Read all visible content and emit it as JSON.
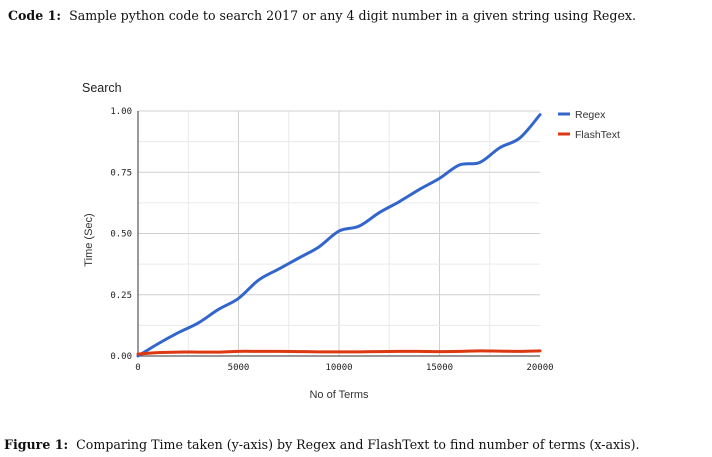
{
  "code_caption": {
    "label": "Code 1:",
    "text": "Sample python code to search 2017 or any 4 digit number in a given string using Regex."
  },
  "figure_caption": {
    "label": "Figure 1:",
    "text": "Comparing Time taken (y-axis) by Regex and FlashText to find number of terms (x-axis)."
  },
  "chart_data": {
    "type": "line",
    "title": "Search",
    "xlabel": "No of Terms",
    "ylabel": "Time (Sec)",
    "xlim": [
      0,
      20000
    ],
    "ylim": [
      0,
      1.0
    ],
    "x_ticks": [
      0,
      5000,
      10000,
      15000,
      20000
    ],
    "x_tick_labels": [
      "0",
      "5000",
      "10000",
      "15000",
      "20000"
    ],
    "y_ticks": [
      0,
      0.25,
      0.5,
      0.75,
      1.0
    ],
    "y_tick_labels": [
      "0.00",
      "0.25",
      "0.50",
      "0.75",
      "1.00"
    ],
    "grid": true,
    "legend_position": "right",
    "x": [
      0,
      1000,
      2000,
      3000,
      4000,
      5000,
      6000,
      7000,
      8000,
      9000,
      10000,
      11000,
      12000,
      13000,
      14000,
      15000,
      16000,
      17000,
      18000,
      19000,
      20000
    ],
    "series": [
      {
        "name": "Regex",
        "color": "#3366cc",
        "values": [
          0.0,
          0.05,
          0.095,
          0.135,
          0.19,
          0.235,
          0.31,
          0.355,
          0.4,
          0.445,
          0.51,
          0.53,
          0.585,
          0.63,
          0.68,
          0.725,
          0.78,
          0.79,
          0.85,
          0.89,
          0.985
        ]
      },
      {
        "name": "FlashText",
        "color": "#dc3912",
        "values": [
          0.008,
          0.014,
          0.016,
          0.016,
          0.016,
          0.019,
          0.019,
          0.019,
          0.018,
          0.017,
          0.017,
          0.017,
          0.018,
          0.019,
          0.019,
          0.018,
          0.019,
          0.021,
          0.02,
          0.019,
          0.021
        ]
      }
    ]
  }
}
